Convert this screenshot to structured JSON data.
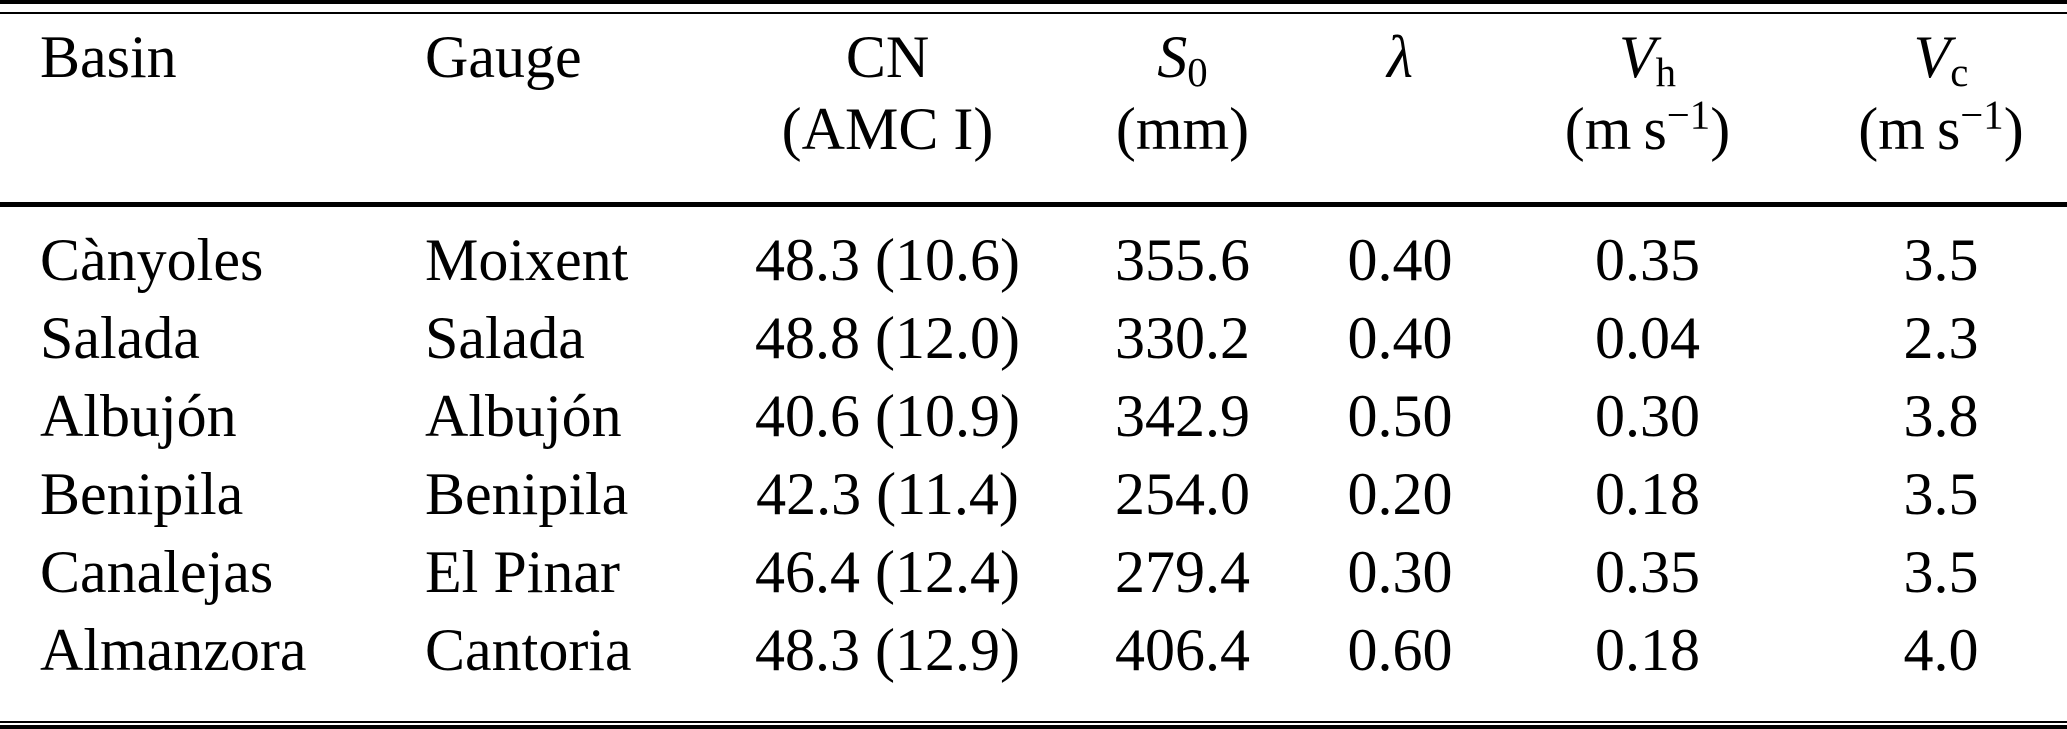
{
  "table": {
    "colors": {
      "text": "#000000",
      "background": "#ffffff",
      "rule": "#000000"
    },
    "columns": [
      {
        "id": "basin",
        "align": "left",
        "line1": [
          {
            "t": "Basin"
          }
        ],
        "line2": []
      },
      {
        "id": "gauge",
        "align": "left",
        "line1": [
          {
            "t": "Gauge"
          }
        ],
        "line2": []
      },
      {
        "id": "cn-amc1",
        "align": "center",
        "line1": [
          {
            "t": "CN"
          }
        ],
        "line2": [
          {
            "t": "(AMC I)"
          }
        ]
      },
      {
        "id": "s0",
        "align": "center",
        "line1": [
          {
            "t": "S",
            "s": "i"
          },
          {
            "t": "0",
            "s": "sub"
          }
        ],
        "line2": [
          {
            "t": "(mm)"
          }
        ]
      },
      {
        "id": "lambda",
        "align": "center",
        "line1": [
          {
            "t": "λ",
            "s": "i"
          }
        ],
        "line2": []
      },
      {
        "id": "vh",
        "align": "center",
        "line1": [
          {
            "t": "V",
            "s": "i"
          },
          {
            "t": "h",
            "s": "sub"
          }
        ],
        "line2": [
          {
            "t": "(m s"
          },
          {
            "t": "−1",
            "s": "sup"
          },
          {
            "t": ")"
          }
        ]
      },
      {
        "id": "vc",
        "align": "center",
        "line1": [
          {
            "t": "V",
            "s": "i"
          },
          {
            "t": "c",
            "s": "sub"
          }
        ],
        "line2": [
          {
            "t": "(m s"
          },
          {
            "t": "−1",
            "s": "sup"
          },
          {
            "t": ")"
          }
        ]
      }
    ],
    "rows": [
      [
        "Cànyoles",
        "Moixent",
        "48.3 (10.6)",
        "355.6",
        "0.40",
        "0.35",
        "3.5"
      ],
      [
        "Salada",
        "Salada",
        "48.8 (12.0)",
        "330.2",
        "0.40",
        "0.04",
        "2.3"
      ],
      [
        "Albujón",
        "Albujón",
        "40.6 (10.9)",
        "342.9",
        "0.50",
        "0.30",
        "3.8"
      ],
      [
        "Benipila",
        "Benipila",
        "42.3 (11.4)",
        "254.0",
        "0.20",
        "0.18",
        "3.5"
      ],
      [
        "Canalejas",
        "El Pinar",
        "46.4 (12.4)",
        "279.4",
        "0.30",
        "0.35",
        "3.5"
      ],
      [
        "Almanzora",
        "Cantoria",
        "48.3 (12.9)",
        "406.4",
        "0.60",
        "0.18",
        "4.0"
      ]
    ]
  }
}
